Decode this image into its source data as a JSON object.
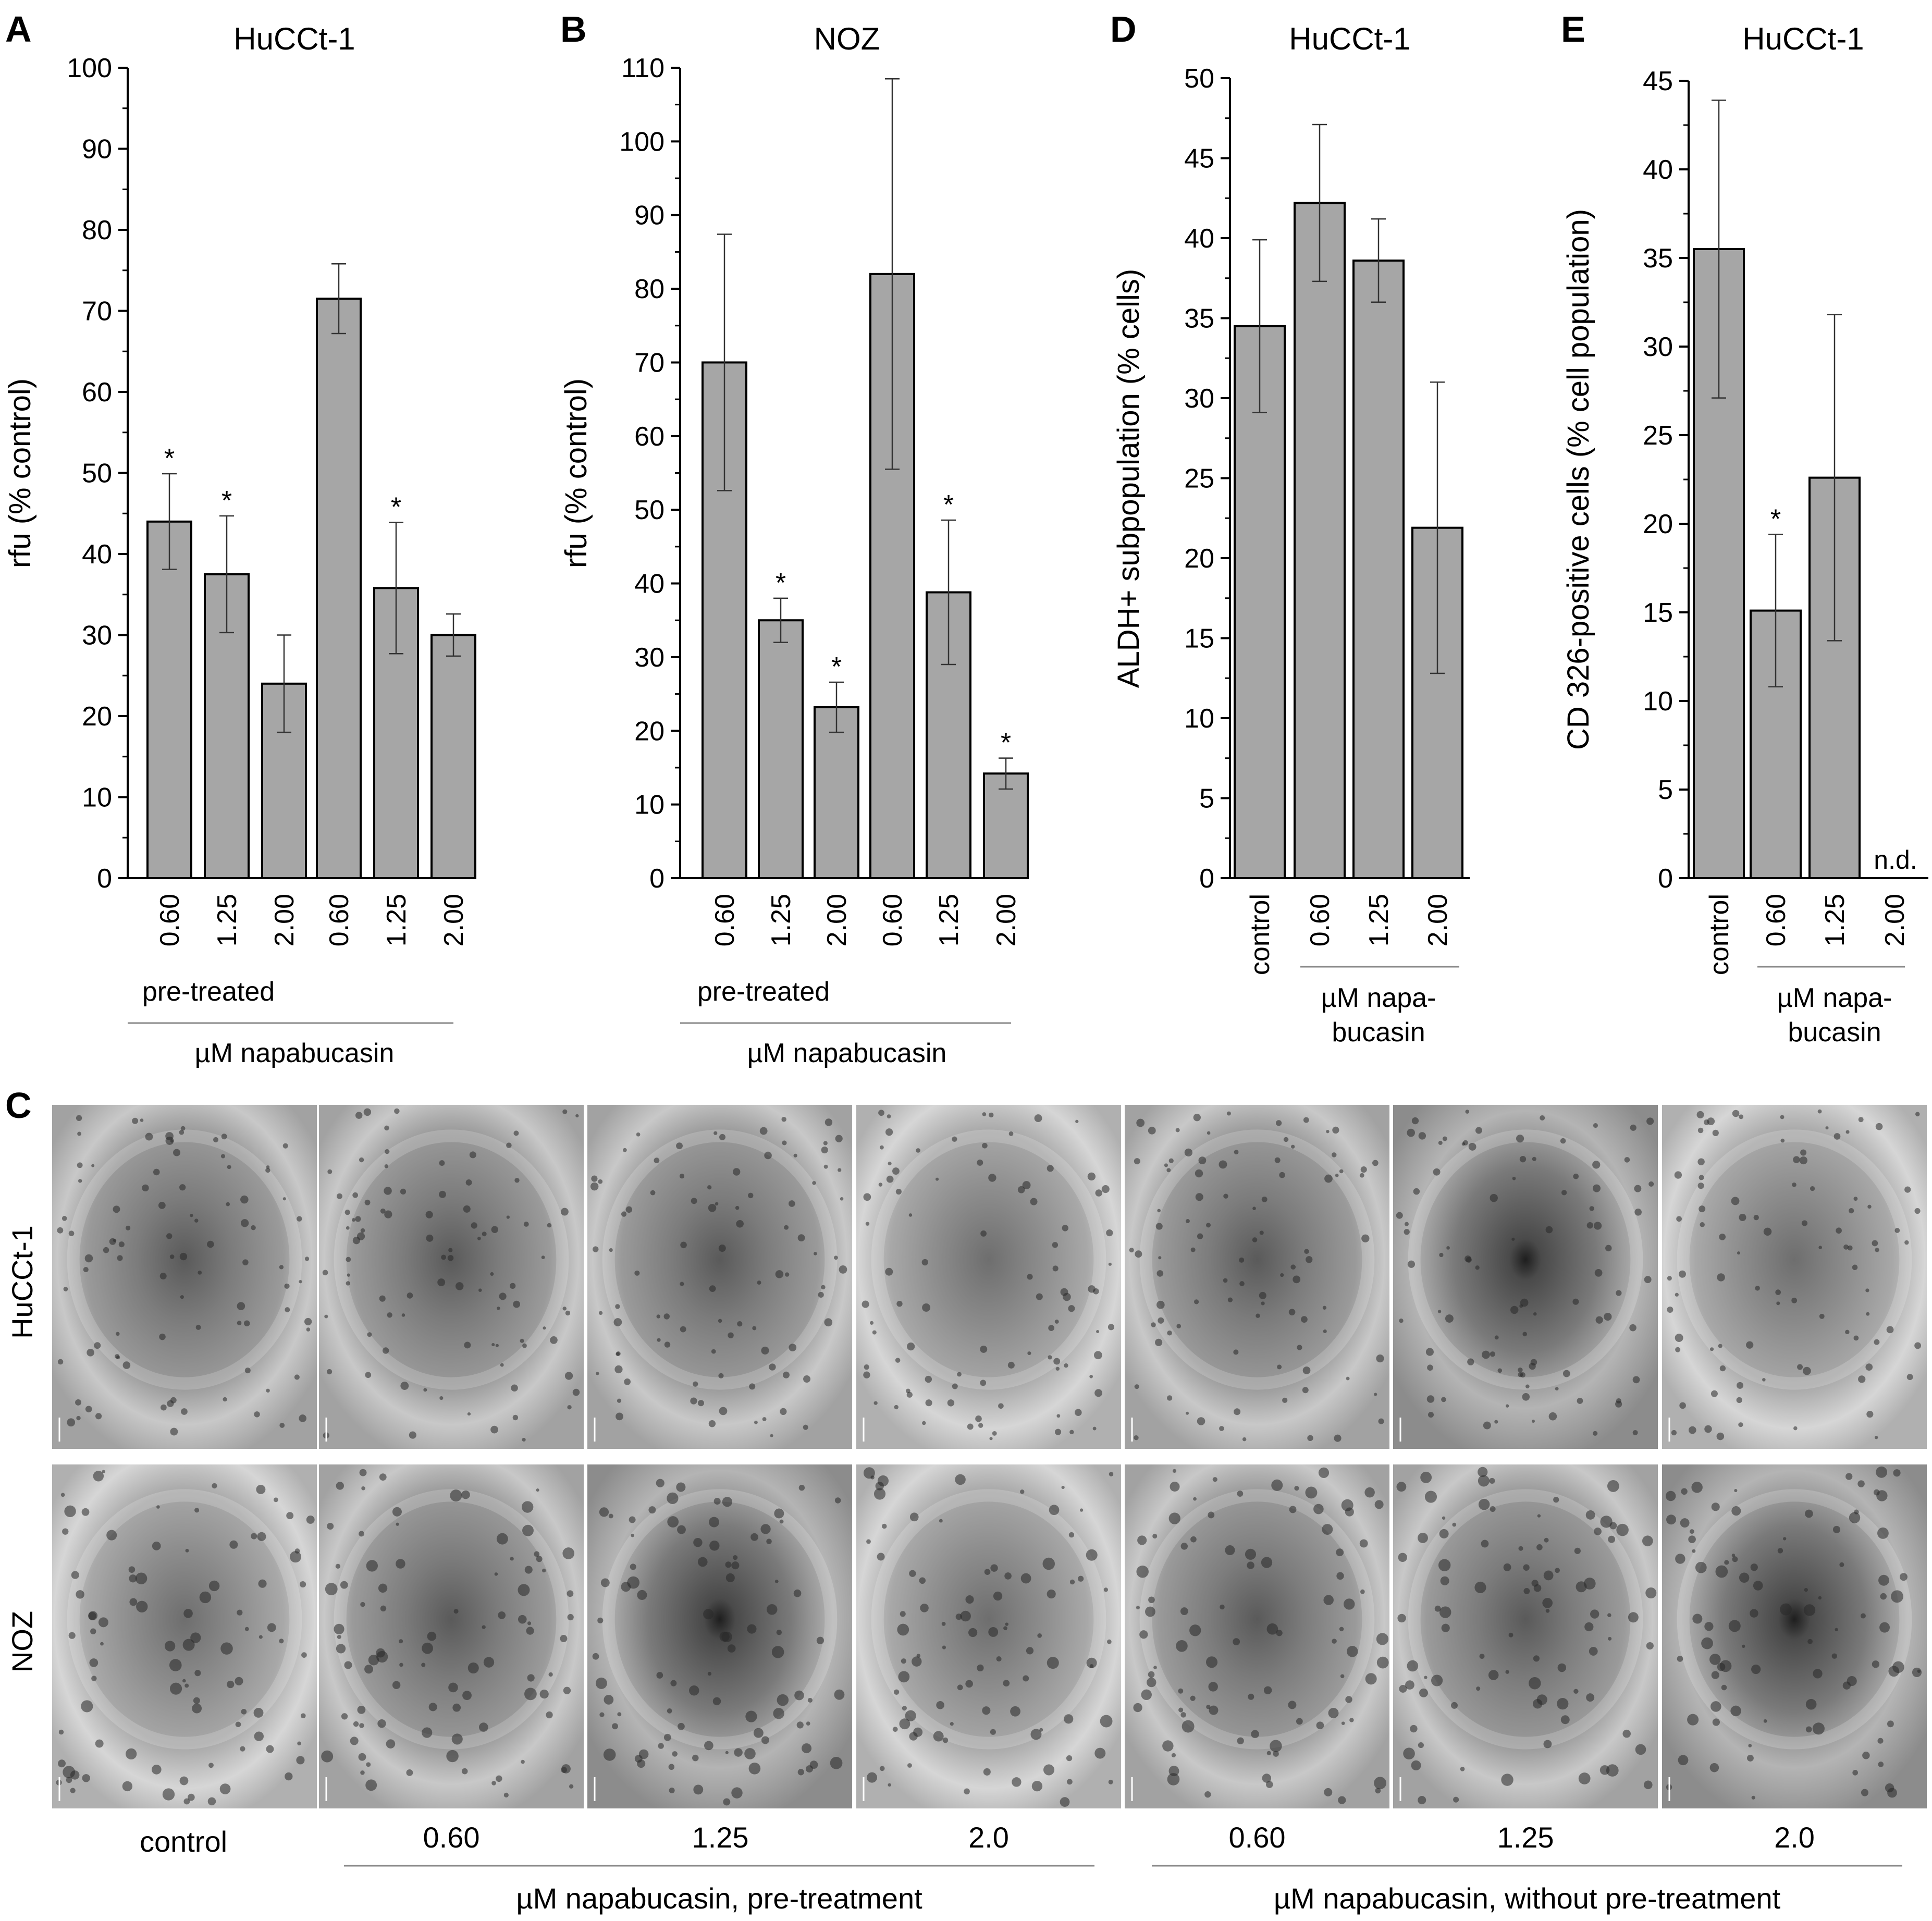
{
  "chart_data": [
    {
      "panel": "A",
      "type": "bar",
      "title": "HuCCt-1",
      "ylabel": "rfu (% control)",
      "ylim": [
        0,
        100
      ],
      "yticks": [
        0,
        10,
        20,
        30,
        40,
        50,
        60,
        70,
        80,
        90,
        100
      ],
      "categories": [
        "0.60",
        "1.25",
        "2.00",
        "0.60",
        "1.25",
        "2.00"
      ],
      "values": [
        44,
        37.5,
        24,
        71.5,
        35.8,
        30
      ],
      "errors": [
        5.9,
        7.2,
        6,
        4.3,
        8.1,
        2.6
      ],
      "significant": [
        "*",
        "*",
        "",
        "",
        "*",
        ""
      ],
      "group_label": "pre-treated",
      "xlabel": "µM napabucasin"
    },
    {
      "panel": "B",
      "type": "bar",
      "title": "NOZ",
      "ylabel": "rfu (% control)",
      "ylim": [
        0,
        110
      ],
      "yticks": [
        0,
        10,
        20,
        30,
        40,
        50,
        60,
        70,
        80,
        90,
        100,
        110
      ],
      "categories": [
        "0.60",
        "1.25",
        "2.00",
        "0.60",
        "1.25",
        "2.00"
      ],
      "values": [
        70,
        35,
        23.2,
        82,
        38.8,
        14.2
      ],
      "errors": [
        17.4,
        3,
        3.4,
        26.5,
        9.8,
        2.1
      ],
      "significant": [
        "",
        "*",
        "*",
        "",
        "*",
        "*"
      ],
      "group_label": "pre-treated",
      "xlabel": "µM napabucasin"
    },
    {
      "panel": "D",
      "type": "bar",
      "title": "HuCCt-1",
      "ylabel": "ALDH+ subpopulation (% cells)",
      "ylim": [
        0,
        50
      ],
      "yticks": [
        0,
        5,
        10,
        15,
        20,
        25,
        30,
        35,
        40,
        45,
        50
      ],
      "categories": [
        "control",
        "0.60",
        "1.25",
        "2.00"
      ],
      "values": [
        34.5,
        42.2,
        38.6,
        21.9
      ],
      "errors": [
        5.4,
        4.9,
        2.6,
        9.1
      ],
      "significant": [
        "",
        "",
        "",
        ""
      ],
      "xlabel": "µM napa-bucasin"
    },
    {
      "panel": "E",
      "type": "bar",
      "title": "HuCCt-1",
      "ylabel": "CD 326-positive cells (% cell population)",
      "ylim": [
        0,
        45
      ],
      "yticks": [
        0,
        5,
        10,
        15,
        20,
        25,
        30,
        35,
        40,
        45
      ],
      "categories": [
        "control",
        "0.60",
        "1.25",
        "2.00"
      ],
      "values": [
        35.5,
        15.1,
        22.6,
        0
      ],
      "errors": [
        8.4,
        4.3,
        9.2,
        0
      ],
      "significant": [
        "",
        "*",
        "",
        ""
      ],
      "annotation": "n.d.",
      "xlabel": "µM napa-bucasin"
    }
  ],
  "panel_c": {
    "letter": "C",
    "rows": [
      "HuCCt-1",
      "NOZ"
    ],
    "columns": [
      "control",
      "0.60",
      "1.25",
      "2.0",
      "0.60",
      "1.25",
      "2.0"
    ],
    "group_pre": "µM napabucasin, pre-treatment",
    "group_without": "µM napabucasin, without pre-treatment"
  }
}
